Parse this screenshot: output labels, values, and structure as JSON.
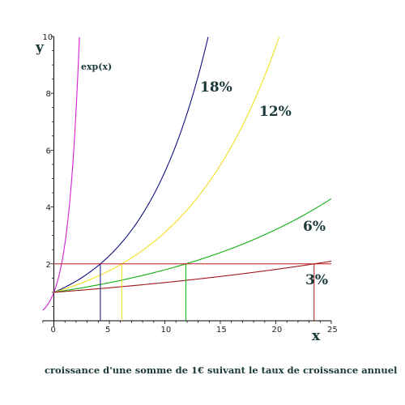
{
  "chart_data": {
    "type": "line",
    "caption": "croissance d'une somme de 1€ suivant le taux de croissance annuel",
    "xlabel": "x",
    "ylabel": "y",
    "xlim": [
      -1,
      25
    ],
    "ylim": [
      -0.2,
      10
    ],
    "x_ticks": [
      0,
      5,
      10,
      15,
      20,
      25
    ],
    "y_ticks": [
      2,
      4,
      6,
      8,
      10
    ],
    "series": [
      {
        "name": "exp(x)",
        "color": "#d020d0",
        "formula": "exp",
        "points": [
          [
            -1,
            0.37
          ],
          [
            0,
            1
          ],
          [
            1,
            2.72
          ],
          [
            2,
            7.39
          ],
          [
            2.3,
            9.97
          ]
        ]
      },
      {
        "name": "18%",
        "color": "#101080",
        "rate": 0.18,
        "points": [
          [
            0,
            1
          ],
          [
            4.19,
            2
          ],
          [
            10,
            5.23
          ],
          [
            13.9,
            9.97
          ]
        ]
      },
      {
        "name": "12%",
        "color": "#f0e020",
        "rate": 0.12,
        "points": [
          [
            0,
            1
          ],
          [
            6.12,
            2
          ],
          [
            15,
            5.47
          ],
          [
            20.3,
            9.97
          ]
        ]
      },
      {
        "name": "6%",
        "color": "#10b010",
        "rate": 0.06,
        "points": [
          [
            0,
            1
          ],
          [
            11.9,
            2
          ],
          [
            20,
            3.21
          ],
          [
            25,
            4.29
          ]
        ]
      },
      {
        "name": "3%",
        "color": "#a01818",
        "rate": 0.03,
        "points": [
          [
            0,
            1
          ],
          [
            23.45,
            2
          ],
          [
            25,
            2.09
          ]
        ]
      }
    ],
    "reference_line": {
      "y": 2,
      "x_range": [
        0,
        25
      ],
      "color": "#c01818"
    },
    "doubling_times": [
      {
        "series": "18%",
        "x": 4.19,
        "color": "#101080"
      },
      {
        "series": "12%",
        "x": 6.12,
        "color": "#f0e020"
      },
      {
        "series": "6%",
        "x": 11.9,
        "color": "#10b010"
      },
      {
        "series": "3%",
        "x": 23.45,
        "color": "#a01818"
      }
    ],
    "grid": false
  }
}
